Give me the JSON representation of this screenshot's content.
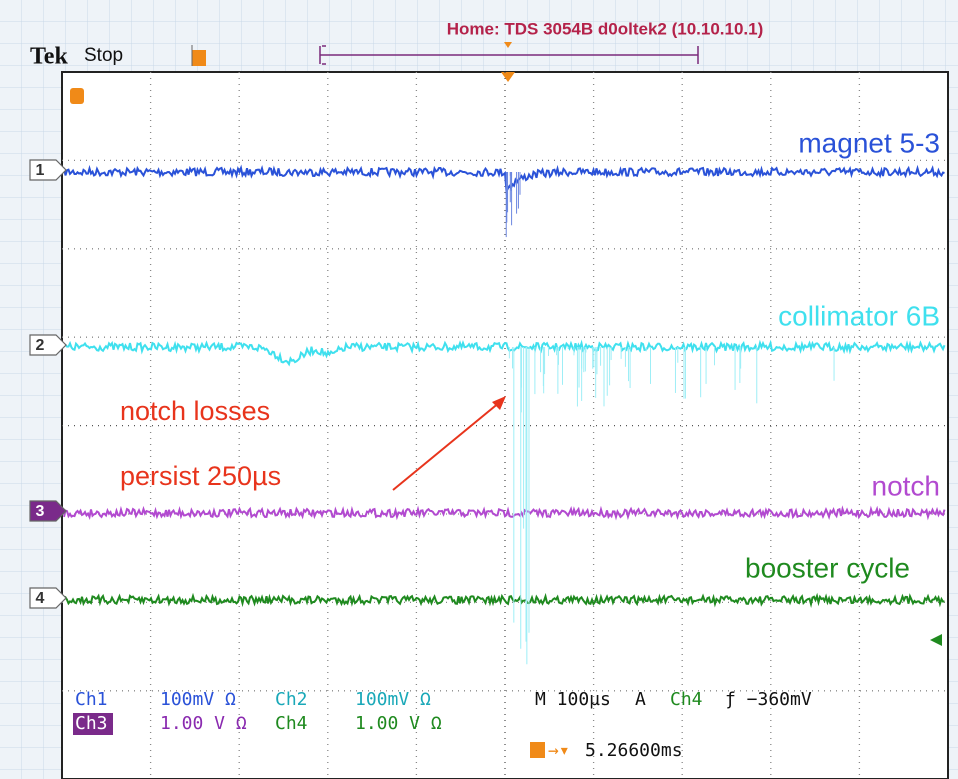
{
  "header": {
    "title": "Home:  TDS 3054B  d0oltek2  (10.10.10.1)",
    "brand": "Tek",
    "status": "Stop"
  },
  "channels": [
    {
      "marker": "1",
      "label": "magnet 5-3",
      "color": "#2a52d8"
    },
    {
      "marker": "2",
      "label": "collimator 6B",
      "color": "#3fe0ee"
    },
    {
      "marker": "3",
      "label": "notch",
      "color": "#b24ad0"
    },
    {
      "marker": "4",
      "label": "booster cycle",
      "color": "#1f8a1f"
    }
  ],
  "annotation": {
    "lines": [
      "notch losses",
      "persist 250µs"
    ]
  },
  "readout": {
    "rows": [
      [
        {
          "text": "Ch1",
          "color": "#2a52d8"
        },
        {
          "text": "100mV Ω",
          "color": "#2a52d8"
        },
        {
          "text": "Ch2",
          "color": "#1aa8b8"
        },
        {
          "text": "100mV Ω",
          "color": "#1aa8b8"
        },
        {
          "text": "M 100µs",
          "color": "#111111"
        },
        {
          "text": "A",
          "color": "#111111"
        },
        {
          "text": "Ch4",
          "color": "#1f8a1f"
        },
        {
          "text": "ƒ −360mV",
          "color": "#111111"
        }
      ],
      [
        {
          "text": "Ch3",
          "color": "#ffffff"
        },
        {
          "text": "1.00 V Ω",
          "color": "#8a2ab0"
        },
        {
          "text": "Ch4",
          "color": "#1f8a1f"
        },
        {
          "text": "1.00 V Ω",
          "color": "#1f8a1f"
        }
      ]
    ],
    "trigger_position": "5.26600ms"
  }
}
